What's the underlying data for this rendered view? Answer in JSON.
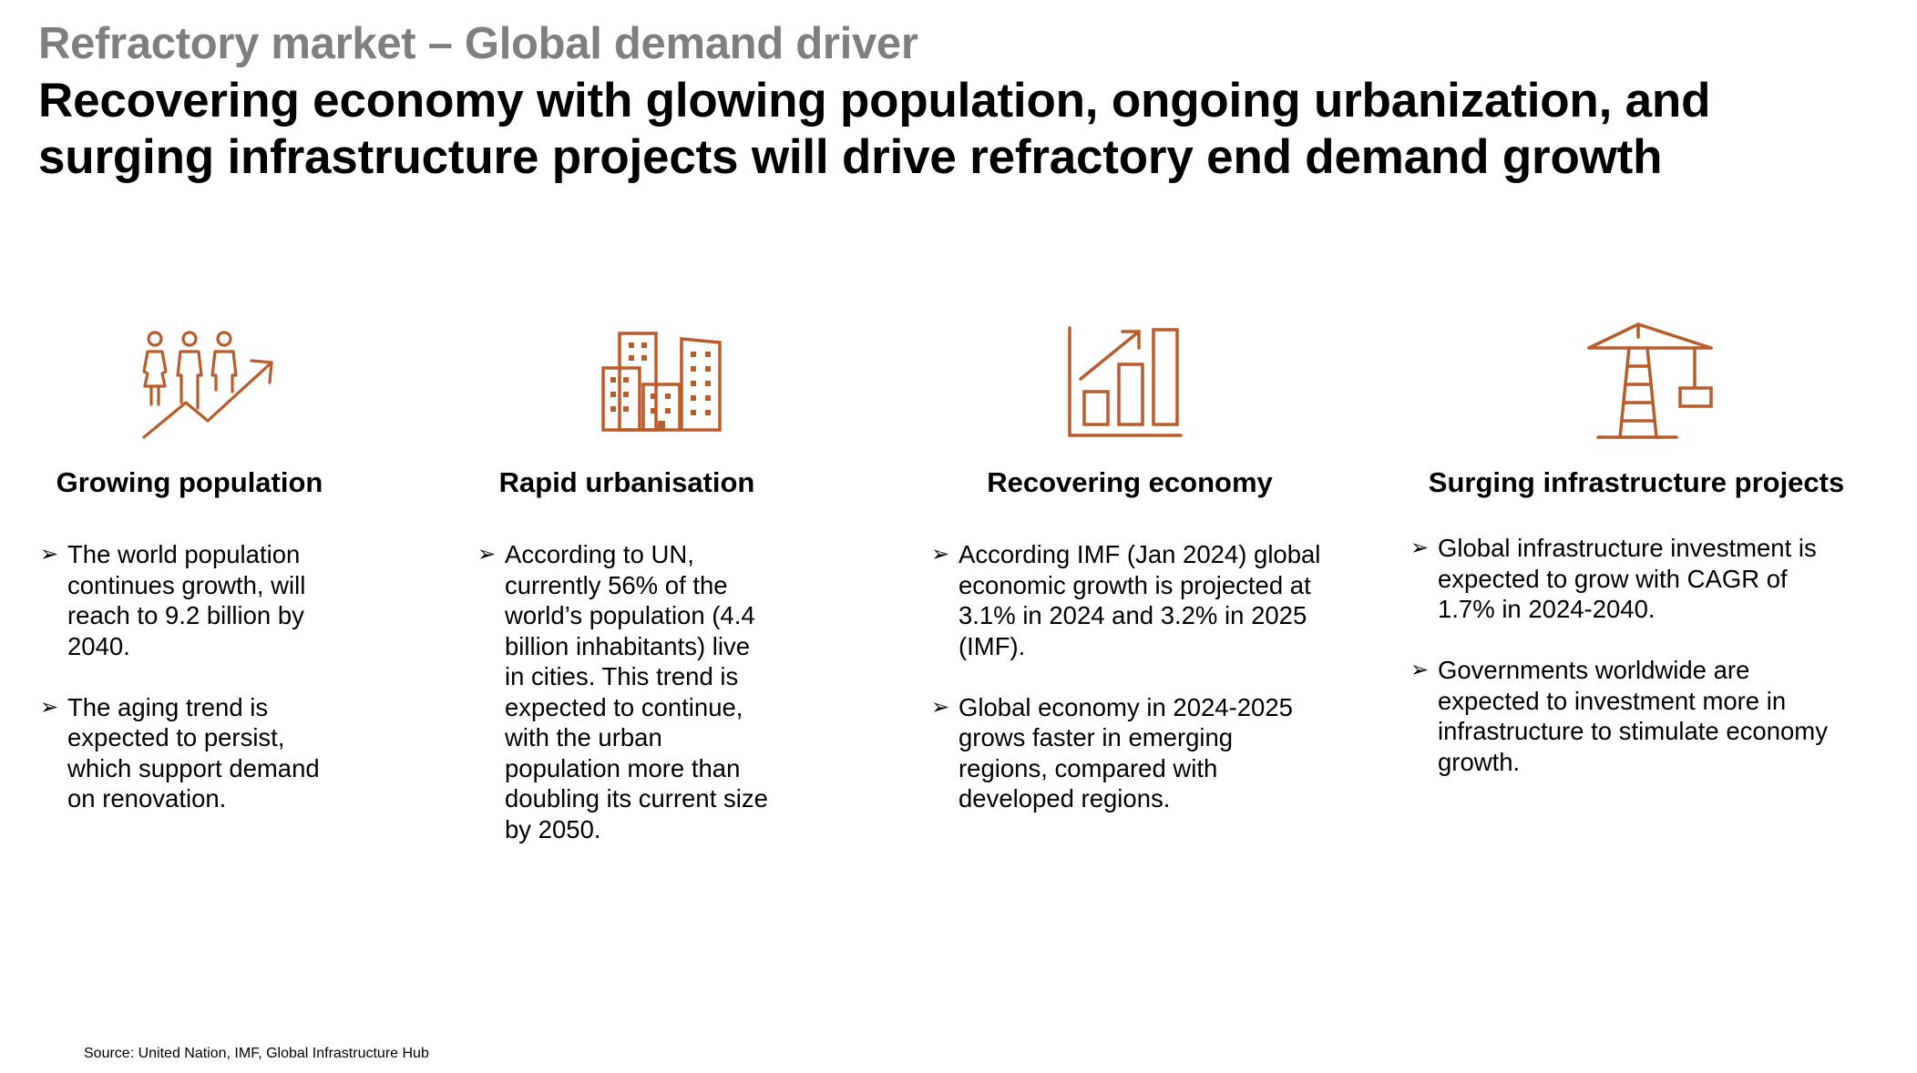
{
  "header": {
    "kicker": "Refractory market – Global demand driver",
    "headline_line1": "Recovering economy with glowing population, ongoing urbanization, and",
    "headline_line2": "surging infrastructure projects will drive refractory end demand growth"
  },
  "colors": {
    "accent": "#b85c2c",
    "kicker": "#7f7f7f"
  },
  "columns": [
    {
      "icon": "population-growth-icon",
      "title": "Growing population",
      "bullets": [
        "The world population continues growth, will reach to 9.2 billion by 2040.",
        "The aging trend is expected to persist, which support demand on renovation."
      ]
    },
    {
      "icon": "city-buildings-icon",
      "title": "Rapid urbanisation",
      "bullets": [
        "According to UN, currently 56% of the world’s population (4.4 billion inhabitants) live in cities. This trend is expected to continue, with the urban population more than doubling its current size by 2050."
      ]
    },
    {
      "icon": "growth-chart-icon",
      "title": "Recovering economy",
      "bullets": [
        "According IMF (Jan 2024) global economic growth is projected at 3.1% in 2024 and 3.2% in 2025 (IMF).",
        "Global economy in 2024-2025 grows faster in emerging regions, compared with developed regions."
      ]
    },
    {
      "icon": "construction-crane-icon",
      "title": "Surging infrastructure projects",
      "bullets": [
        "Global infrastructure investment is expected to grow with CAGR of 1.7% in 2024-2040.",
        "Governments worldwide are expected to investment more in infrastructure to stimulate economy growth."
      ]
    }
  ],
  "footer": {
    "source": "Source: United Nation, IMF, Global Infrastructure Hub"
  }
}
